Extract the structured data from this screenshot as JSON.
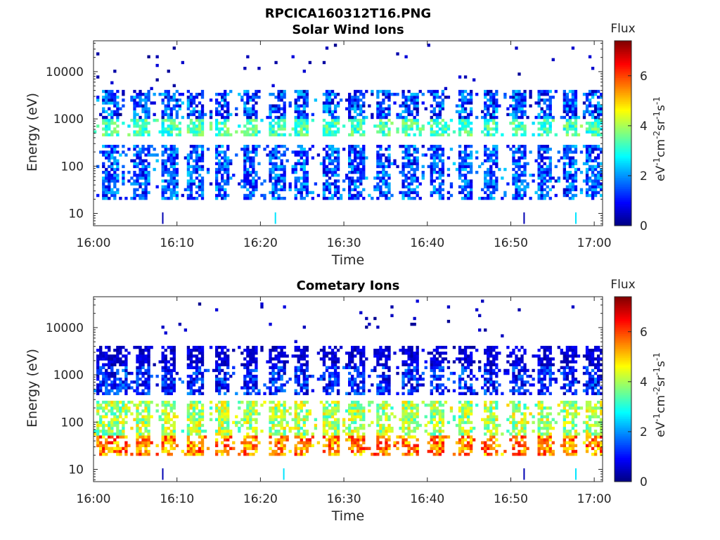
{
  "figure_title": "RPCICA160312T16.PNG",
  "chart_data": [
    {
      "type": "heatmap",
      "title": "Solar Wind Ions",
      "xlabel": "Time",
      "ylabel": "Energy (eV)",
      "x_ticks": [
        "16:00",
        "16:10",
        "16:20",
        "16:30",
        "16:40",
        "16:50",
        "17:00"
      ],
      "x_range": [
        "16:00",
        "17:01"
      ],
      "y_scale": "log",
      "y_ticks": [
        "10",
        "100",
        "1000",
        "10000"
      ],
      "y_range": [
        5.5,
        45000
      ],
      "colorbar": {
        "title": "Flux",
        "ticks": [
          "0",
          "2",
          "4",
          "6"
        ],
        "range": [
          0,
          7.4
        ],
        "colormap": "jet"
      },
      "features": {
        "bursts_minutes": [
          2.0,
          5.8,
          9.2,
          12.2,
          15.5,
          18.7,
          22.0,
          25.0,
          28.5,
          31.5,
          34.7,
          38.0,
          41.2,
          44.5,
          47.5,
          51.0,
          54.0,
          57.0,
          60.0
        ],
        "bands": [
          {
            "emin": 20,
            "emax": 300,
            "level_min": 0.5,
            "level_max": 2.5
          },
          {
            "emin": 450,
            "emax": 950,
            "level_min": 2.5,
            "level_max": 4.0
          },
          {
            "emin": 1000,
            "emax": 4000,
            "level_min": 0.3,
            "level_max": 2.5
          }
        ],
        "low_energy_lines_minutes": [
          8.3,
          21.8,
          51.6,
          57.8
        ]
      }
    },
    {
      "type": "heatmap",
      "title": "Cometary Ions",
      "xlabel": "Time",
      "ylabel": "Energy (eV)",
      "x_ticks": [
        "16:00",
        "16:10",
        "16:20",
        "16:30",
        "16:40",
        "16:50",
        "17:00"
      ],
      "x_range": [
        "16:00",
        "17:01"
      ],
      "y_scale": "log",
      "y_ticks": [
        "10",
        "100",
        "1000",
        "10000"
      ],
      "y_range": [
        5.5,
        45000
      ],
      "colorbar": {
        "title": "Flux",
        "ticks": [
          "0",
          "2",
          "4",
          "6"
        ],
        "range": [
          0,
          7.4
        ],
        "colormap": "jet"
      },
      "features": {
        "bursts_minutes": [
          1.2,
          3.0,
          6.0,
          9.0,
          12.2,
          15.5,
          18.7,
          22.0,
          25.0,
          28.5,
          31.5,
          34.7,
          38.0,
          41.2,
          44.5,
          47.5,
          51.0,
          54.0,
          57.0,
          60.0
        ],
        "bands": [
          {
            "emin": 20,
            "emax": 50,
            "level_min": 4.5,
            "level_max": 6.5
          },
          {
            "emin": 50,
            "emax": 300,
            "level_min": 3.0,
            "level_max": 5.0
          },
          {
            "emin": 400,
            "emax": 1500,
            "level_min": 0.3,
            "level_max": 2.0
          },
          {
            "emin": 1500,
            "emax": 4000,
            "level_min": 0.2,
            "level_max": 1.0
          }
        ],
        "low_energy_lines_minutes": [
          8.3,
          22.8,
          51.6,
          57.8
        ]
      }
    }
  ]
}
